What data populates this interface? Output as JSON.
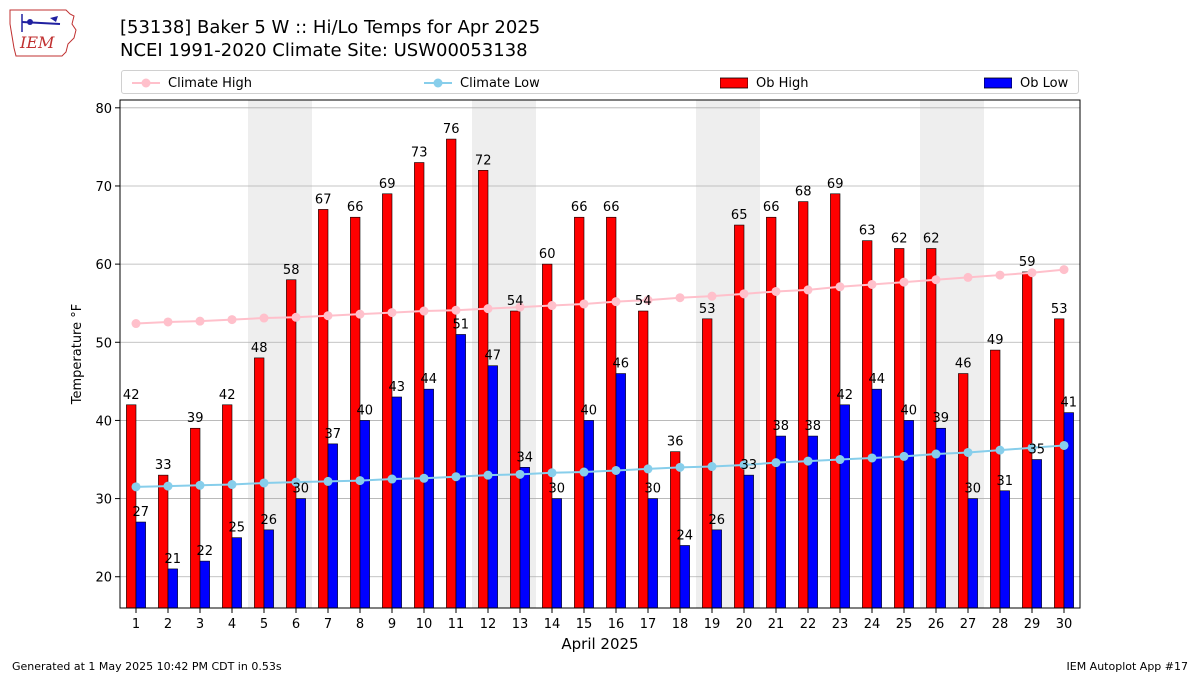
{
  "header": {
    "title_line1": "[53138] Baker 5 W :: Hi/Lo Temps for Apr 2025",
    "title_line2": "NCEI 1991-2020 Climate Site: USW00053138",
    "logo_text": "IEM"
  },
  "footer": {
    "generated": "Generated at 1 May 2025 10:42 PM CDT in 0.53s",
    "app": "IEM Autoplot App #17"
  },
  "colors": {
    "ob_high": "#ff0000",
    "ob_low": "#0000ff",
    "climate_high": "#ffc0cb",
    "climate_low": "#87ceeb",
    "weekend_band": "#eeeeee"
  },
  "chart_data": {
    "type": "bar",
    "xlabel": "April 2025",
    "ylabel": "Temperature °F",
    "ylim": [
      16,
      81
    ],
    "yticks": [
      20,
      30,
      40,
      50,
      60,
      70,
      80
    ],
    "grid": true,
    "legend_position": "top",
    "x": [
      1,
      2,
      3,
      4,
      5,
      6,
      7,
      8,
      9,
      10,
      11,
      12,
      13,
      14,
      15,
      16,
      17,
      18,
      19,
      20,
      21,
      22,
      23,
      24,
      25,
      26,
      27,
      28,
      29,
      30
    ],
    "shaded_days": [
      5,
      6,
      12,
      13,
      19,
      20,
      26,
      27
    ],
    "series": [
      {
        "name": "Climate High",
        "kind": "line",
        "values": [
          52.4,
          52.6,
          52.7,
          52.9,
          53.1,
          53.2,
          53.4,
          53.6,
          53.8,
          54.0,
          54.1,
          54.3,
          54.5,
          54.7,
          54.9,
          55.2,
          55.4,
          55.7,
          55.9,
          56.2,
          56.5,
          56.7,
          57.1,
          57.4,
          57.7,
          58.0,
          58.3,
          58.6,
          58.9,
          59.3
        ]
      },
      {
        "name": "Climate Low",
        "kind": "line",
        "values": [
          31.5,
          31.6,
          31.7,
          31.8,
          32.0,
          32.1,
          32.2,
          32.3,
          32.5,
          32.6,
          32.8,
          33.0,
          33.1,
          33.3,
          33.4,
          33.6,
          33.8,
          34.0,
          34.1,
          34.3,
          34.6,
          34.8,
          35.0,
          35.2,
          35.4,
          35.7,
          35.9,
          36.2,
          36.5,
          36.8
        ]
      },
      {
        "name": "Ob High",
        "kind": "bar",
        "values": [
          42,
          33,
          39,
          42,
          48,
          58,
          67,
          66,
          69,
          73,
          76,
          72,
          54,
          60,
          66,
          66,
          54,
          36,
          53,
          65,
          66,
          68,
          69,
          63,
          62,
          62,
          46,
          49,
          59,
          53
        ]
      },
      {
        "name": "Ob Low",
        "kind": "bar",
        "values": [
          27,
          21,
          22,
          25,
          26,
          30,
          37,
          40,
          43,
          44,
          51,
          47,
          34,
          30,
          40,
          46,
          30,
          24,
          26,
          33,
          38,
          38,
          42,
          44,
          40,
          39,
          30,
          31,
          35,
          41
        ]
      }
    ]
  }
}
